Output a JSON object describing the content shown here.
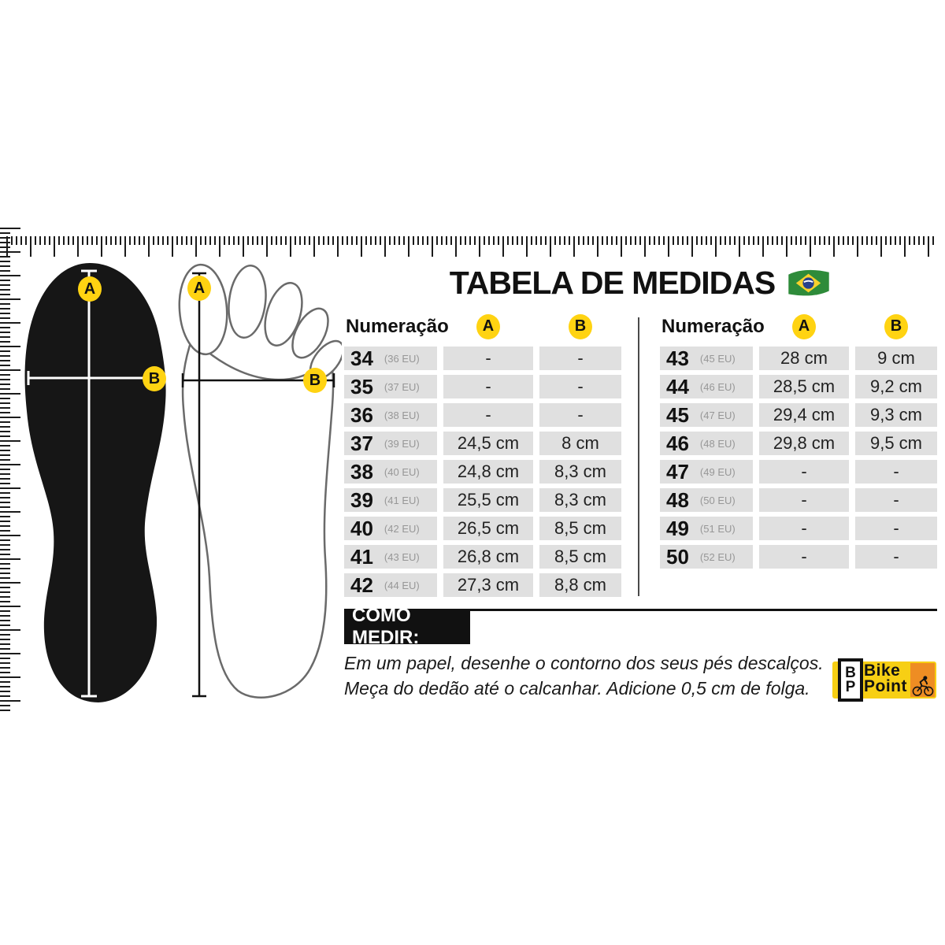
{
  "title": {
    "text": "TABELA DE MEDIDAS"
  },
  "diagram": {
    "label_a": "A",
    "label_b": "B"
  },
  "tables": [
    {
      "header": {
        "numeracao": "Numeração",
        "a": "A",
        "b": "B"
      },
      "rows": [
        {
          "size": "34",
          "eu": "(36 EU)",
          "a": "-",
          "b": "-"
        },
        {
          "size": "35",
          "eu": "(37 EU)",
          "a": "-",
          "b": "-"
        },
        {
          "size": "36",
          "eu": "(38 EU)",
          "a": "-",
          "b": "-"
        },
        {
          "size": "37",
          "eu": "(39 EU)",
          "a": "24,5 cm",
          "b": "8 cm"
        },
        {
          "size": "38",
          "eu": "(40 EU)",
          "a": "24,8 cm",
          "b": "8,3 cm"
        },
        {
          "size": "39",
          "eu": "(41 EU)",
          "a": "25,5 cm",
          "b": "8,3 cm"
        },
        {
          "size": "40",
          "eu": "(42 EU)",
          "a": "26,5 cm",
          "b": "8,5 cm"
        },
        {
          "size": "41",
          "eu": "(43 EU)",
          "a": "26,8 cm",
          "b": "8,5 cm"
        },
        {
          "size": "42",
          "eu": "(44 EU)",
          "a": "27,3 cm",
          "b": "8,8 cm"
        }
      ]
    },
    {
      "header": {
        "numeracao": "Numeração",
        "a": "A",
        "b": "B"
      },
      "rows": [
        {
          "size": "43",
          "eu": "(45 EU)",
          "a": "28 cm",
          "b": "9 cm"
        },
        {
          "size": "44",
          "eu": "(46 EU)",
          "a": "28,5 cm",
          "b": "9,2 cm"
        },
        {
          "size": "45",
          "eu": "(47 EU)",
          "a": "29,4 cm",
          "b": "9,3 cm"
        },
        {
          "size": "46",
          "eu": "(48 EU)",
          "a": "29,8 cm",
          "b": "9,5 cm"
        },
        {
          "size": "47",
          "eu": "(49 EU)",
          "a": "-",
          "b": "-"
        },
        {
          "size": "48",
          "eu": "(50 EU)",
          "a": "-",
          "b": "-"
        },
        {
          "size": "49",
          "eu": "(51 EU)",
          "a": "-",
          "b": "-"
        },
        {
          "size": "50",
          "eu": "(52 EU)",
          "a": "-",
          "b": "-"
        }
      ]
    }
  ],
  "como_medir": {
    "heading": "COMO MEDIR:",
    "line1": "Em um papel,  desenhe o contorno dos seus pés descalços.",
    "line2": "Meça do dedão até o calcanhar. Adicione 0,5 cm de folga."
  },
  "logo": {
    "badge_top": "B",
    "badge_bottom": "P",
    "line1": "Bike",
    "line2": "Point"
  },
  "colors": {
    "accent_yellow": "#FFD312",
    "cell_gray": "#E0E0E0",
    "logo_yellow": "#F7CF14",
    "logo_orange": "#EE8D23",
    "flag_green": "#2E8B3A",
    "flag_yellow": "#F8D12C",
    "flag_blue": "#27408B"
  }
}
